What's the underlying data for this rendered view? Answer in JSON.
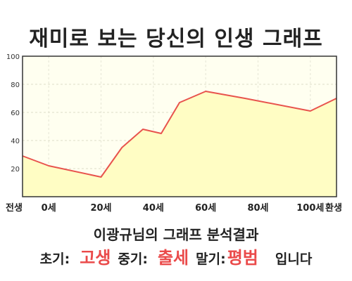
{
  "title": "재미로 보는 당신의 인생 그래프",
  "caption": "이광규님의 그래프 분석결과",
  "summary": {
    "early_label": "초기:",
    "early_value": "고생",
    "mid_label": "중기:",
    "mid_value": "출세",
    "late_label": "말기:",
    "late_value": "평범",
    "ending": "입니다"
  },
  "colors": {
    "line": "#e8534d",
    "fill": "#fffdc4",
    "plot_bg": "#fffff0",
    "highlight": "#ea4a4a"
  },
  "chart_data": {
    "type": "area",
    "title": "재미로 보는 당신의 인생 그래프",
    "x_categories": [
      "전생",
      "0세",
      "20세",
      "40세",
      "60세",
      "80세",
      "100세",
      "환생"
    ],
    "x": [
      -10,
      0,
      20,
      40,
      60,
      80,
      100,
      110
    ],
    "series": [
      {
        "x": [
          -10,
          0,
          20,
          28,
          36,
          43,
          50,
          60,
          75,
          100,
          110
        ],
        "values": [
          29,
          22,
          14,
          35,
          48,
          45,
          67,
          75,
          70,
          61,
          70
        ]
      }
    ],
    "y_ticks": [
      20,
      40,
      60,
      80,
      100
    ],
    "ylim": [
      0,
      100
    ],
    "xlim": [
      -10,
      110
    ],
    "grid": true,
    "legend": "none"
  }
}
